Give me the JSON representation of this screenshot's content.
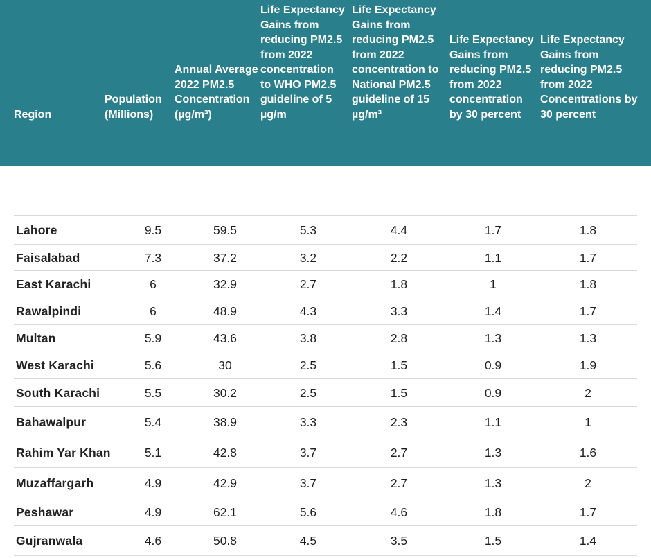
{
  "table": {
    "headers": [
      "Region",
      "Population\n(Millions)",
      "Annual Average\n2022 PM2.5\nConcentration\n(µg/m³)",
      "Life Expectancy\nGains from\nreducing PM2.5\nfrom 2022\nconcentration\nto WHO PM2.5\nguideline of 5\nµg/m",
      "Life Expectancy\nGains from\nreducing PM2.5\nfrom 2022\nconcentration to\nNational PM2.5\nguideline of 15\nµg/m³",
      "Life Expectancy\nGains from\nreducing PM2.5\nfrom 2022\nconcentration\nby 30 percent",
      "Life Expectancy\nGains from\nreducing PM2.5\nfrom 2022\nConcentrations by\n30 percent"
    ],
    "rows": [
      [
        "Lahore",
        "9.5",
        "59.5",
        "5.3",
        "4.4",
        "1.7",
        "1.8"
      ],
      [
        "Faisalabad",
        "7.3",
        "37.2",
        "3.2",
        "2.2",
        "1.1",
        "1.7"
      ],
      [
        "East Karachi",
        "6",
        "32.9",
        "2.7",
        "1.8",
        "1",
        "1.8"
      ],
      [
        "Rawalpindi",
        "6",
        "48.9",
        "4.3",
        "3.3",
        "1.4",
        "1.7"
      ],
      [
        "Multan",
        "5.9",
        "43.6",
        "3.8",
        "2.8",
        "1.3",
        "1.3"
      ],
      [
        "West Karachi",
        "5.6",
        "30",
        "2.5",
        "1.5",
        "0.9",
        "1.9"
      ],
      [
        "South Karachi",
        "5.5",
        "30.2",
        "2.5",
        "1.5",
        "0.9",
        "2"
      ],
      [
        "Bahawalpur",
        "5.4",
        "38.9",
        "3.3",
        "2.3",
        "1.1",
        "1"
      ],
      [
        "Rahim Yar Khan",
        "5.1",
        "42.8",
        "3.7",
        "2.7",
        "1.3",
        "1.6"
      ],
      [
        "Muzaffargarh",
        "4.9",
        "42.9",
        "3.7",
        "2.7",
        "1.3",
        "2"
      ],
      [
        "Peshawar",
        "4.9",
        "62.1",
        "5.6",
        "4.6",
        "1.8",
        "1.7"
      ],
      [
        "Gujranwala",
        "4.6",
        "50.8",
        "4.5",
        "3.5",
        "1.5",
        "1.4"
      ]
    ]
  },
  "colors": {
    "header_bg": "#2a7f8c",
    "header_text": "#ffffff",
    "rule": "#d9d9d9"
  }
}
